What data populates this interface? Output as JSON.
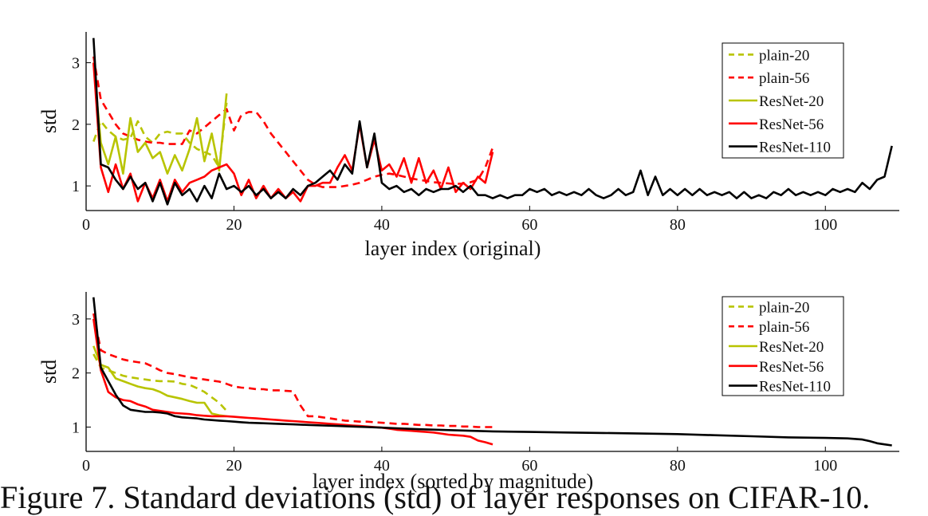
{
  "caption": "Figure 7. Standard deviations (std) of layer responses on CIFAR-10.",
  "colors": {
    "plain_20": "#b8c400",
    "plain_56": "#ff0000",
    "resnet_20": "#b8c400",
    "resnet_56": "#ff0000",
    "resnet_110": "#000000"
  },
  "chart_data": [
    {
      "type": "line",
      "xlabel": "layer index (original)",
      "ylabel": "std",
      "xlim": [
        0,
        110
      ],
      "ylim": [
        0.6,
        3.5
      ],
      "xticks": [
        0,
        20,
        40,
        60,
        80,
        100
      ],
      "yticks": [
        1,
        2,
        3
      ],
      "legend_position": "top-right",
      "series": [
        {
          "name": "plain-20",
          "style": "dashed",
          "color": "#b8c400",
          "x": [
            1,
            2,
            3,
            4,
            5,
            6,
            7,
            8,
            9,
            10,
            11,
            12,
            13,
            14,
            15,
            16,
            17,
            18,
            19
          ],
          "y": [
            1.72,
            2.05,
            1.9,
            1.8,
            1.75,
            1.78,
            2.05,
            1.8,
            1.7,
            1.85,
            1.88,
            1.85,
            1.85,
            1.7,
            1.6,
            1.55,
            1.5,
            1.3,
            2.35
          ]
        },
        {
          "name": "plain-56",
          "style": "dashed",
          "color": "#ff0000",
          "x": [
            1,
            2,
            3,
            4,
            5,
            6,
            7,
            8,
            9,
            10,
            11,
            12,
            13,
            14,
            15,
            16,
            17,
            18,
            19,
            20,
            21,
            22,
            23,
            24,
            25,
            26,
            27,
            28,
            29,
            30,
            31,
            32,
            33,
            34,
            35,
            36,
            37,
            38,
            39,
            40,
            41,
            42,
            43,
            44,
            45,
            46,
            47,
            48,
            49,
            50,
            51,
            52,
            53,
            54,
            55
          ],
          "y": [
            3.1,
            2.4,
            2.2,
            2.0,
            1.85,
            1.8,
            1.75,
            1.72,
            1.7,
            1.7,
            1.68,
            1.68,
            1.68,
            1.9,
            1.85,
            1.95,
            2.05,
            2.15,
            2.25,
            1.9,
            2.15,
            2.2,
            2.2,
            2.05,
            1.85,
            1.7,
            1.55,
            1.4,
            1.25,
            1.1,
            1.02,
            0.98,
            0.98,
            0.98,
            1.0,
            1.02,
            1.05,
            1.1,
            1.15,
            1.18,
            1.2,
            1.18,
            1.15,
            1.12,
            1.1,
            1.08,
            1.06,
            1.05,
            1.04,
            1.03,
            1.04,
            1.06,
            1.1,
            1.3,
            1.62
          ]
        },
        {
          "name": "ResNet-20",
          "style": "solid",
          "color": "#b8c400",
          "x": [
            1,
            2,
            3,
            4,
            5,
            6,
            7,
            8,
            9,
            10,
            11,
            12,
            13,
            14,
            15,
            16,
            17,
            18,
            19
          ],
          "y": [
            3.0,
            1.7,
            1.35,
            1.8,
            1.2,
            2.1,
            1.55,
            1.7,
            1.45,
            1.55,
            1.2,
            1.5,
            1.25,
            1.6,
            2.1,
            1.4,
            1.85,
            1.25,
            2.5
          ]
        },
        {
          "name": "ResNet-56",
          "style": "solid",
          "color": "#ff0000",
          "x": [
            1,
            2,
            3,
            4,
            5,
            6,
            7,
            8,
            9,
            10,
            11,
            12,
            13,
            14,
            15,
            16,
            17,
            18,
            19,
            20,
            21,
            22,
            23,
            24,
            25,
            26,
            27,
            28,
            29,
            30,
            31,
            32,
            33,
            34,
            35,
            36,
            37,
            38,
            39,
            40,
            41,
            42,
            43,
            44,
            45,
            46,
            47,
            48,
            49,
            50,
            51,
            52,
            53,
            54,
            55
          ],
          "y": [
            3.0,
            1.3,
            0.9,
            1.35,
            0.95,
            1.2,
            0.75,
            1.05,
            0.8,
            1.1,
            0.75,
            1.1,
            0.9,
            1.05,
            1.1,
            1.15,
            1.25,
            1.3,
            1.35,
            1.2,
            0.85,
            1.1,
            0.8,
            1.0,
            0.8,
            0.95,
            0.8,
            0.9,
            0.75,
            1.0,
            1.0,
            1.05,
            1.05,
            1.3,
            1.5,
            1.25,
            2.0,
            1.3,
            1.75,
            1.25,
            1.35,
            1.15,
            1.45,
            1.05,
            1.45,
            1.05,
            1.25,
            0.95,
            1.3,
            0.9,
            1.05,
            0.95,
            1.15,
            1.05,
            1.55
          ]
        },
        {
          "name": "ResNet-110",
          "style": "solid",
          "color": "#000000",
          "x": [
            1,
            2,
            3,
            4,
            5,
            6,
            7,
            8,
            9,
            10,
            11,
            12,
            13,
            14,
            15,
            16,
            17,
            18,
            19,
            20,
            21,
            22,
            23,
            24,
            25,
            26,
            27,
            28,
            29,
            30,
            31,
            32,
            33,
            34,
            35,
            36,
            37,
            38,
            39,
            40,
            41,
            42,
            43,
            44,
            45,
            46,
            47,
            48,
            49,
            50,
            51,
            52,
            53,
            54,
            55,
            56,
            57,
            58,
            59,
            60,
            61,
            62,
            63,
            64,
            65,
            66,
            67,
            68,
            69,
            70,
            71,
            72,
            73,
            74,
            75,
            76,
            77,
            78,
            79,
            80,
            81,
            82,
            83,
            84,
            85,
            86,
            87,
            88,
            89,
            90,
            91,
            92,
            93,
            94,
            95,
            96,
            97,
            98,
            99,
            100,
            101,
            102,
            103,
            104,
            105,
            106,
            107,
            108,
            109
          ],
          "y": [
            3.4,
            1.35,
            1.3,
            1.1,
            0.95,
            1.15,
            0.95,
            1.05,
            0.75,
            1.05,
            0.7,
            1.05,
            0.85,
            0.95,
            0.75,
            1.0,
            0.8,
            1.2,
            0.95,
            1.0,
            0.9,
            1.0,
            0.85,
            0.95,
            0.8,
            0.9,
            0.8,
            0.95,
            0.85,
            1.0,
            1.05,
            1.15,
            1.25,
            1.1,
            1.35,
            1.2,
            2.05,
            1.3,
            1.85,
            1.05,
            0.95,
            1.0,
            0.9,
            0.95,
            0.85,
            0.95,
            0.9,
            0.95,
            0.95,
            1.0,
            0.9,
            1.0,
            0.85,
            0.85,
            0.8,
            0.85,
            0.8,
            0.85,
            0.85,
            0.95,
            0.9,
            0.95,
            0.85,
            0.9,
            0.85,
            0.9,
            0.85,
            0.95,
            0.85,
            0.8,
            0.85,
            0.95,
            0.85,
            0.9,
            1.25,
            0.85,
            1.15,
            0.85,
            0.95,
            0.85,
            0.95,
            0.85,
            0.95,
            0.85,
            0.9,
            0.85,
            0.9,
            0.8,
            0.9,
            0.8,
            0.85,
            0.8,
            0.9,
            0.85,
            0.95,
            0.85,
            0.9,
            0.85,
            0.9,
            0.85,
            0.95,
            0.9,
            0.95,
            0.9,
            1.05,
            0.95,
            1.1,
            1.15,
            1.65
          ]
        }
      ]
    },
    {
      "type": "line",
      "xlabel": "layer index (sorted by magnitude)",
      "ylabel": "std",
      "xlim": [
        0,
        110
      ],
      "ylim": [
        0.55,
        3.5
      ],
      "xticks": [
        0,
        20,
        40,
        60,
        80,
        100
      ],
      "yticks": [
        1,
        2,
        3
      ],
      "legend_position": "top-right",
      "series": [
        {
          "name": "plain-20",
          "style": "dashed",
          "color": "#b8c400",
          "x": [
            1,
            2,
            3,
            4,
            5,
            6,
            7,
            8,
            9,
            10,
            11,
            12,
            13,
            14,
            15,
            16,
            17,
            18,
            19
          ],
          "y": [
            2.35,
            2.1,
            2.05,
            2.0,
            1.95,
            1.92,
            1.9,
            1.88,
            1.86,
            1.85,
            1.85,
            1.84,
            1.8,
            1.78,
            1.72,
            1.65,
            1.55,
            1.45,
            1.3
          ]
        },
        {
          "name": "plain-56",
          "style": "dashed",
          "color": "#ff0000",
          "x": [
            1,
            2,
            3,
            4,
            5,
            6,
            7,
            8,
            9,
            10,
            11,
            12,
            13,
            14,
            15,
            16,
            17,
            18,
            19,
            20,
            21,
            22,
            23,
            24,
            25,
            26,
            27,
            28,
            29,
            30,
            31,
            32,
            33,
            34,
            35,
            36,
            37,
            38,
            39,
            40,
            41,
            42,
            43,
            44,
            45,
            46,
            47,
            48,
            49,
            50,
            51,
            52,
            53,
            54,
            55
          ],
          "y": [
            3.1,
            2.42,
            2.35,
            2.3,
            2.25,
            2.22,
            2.2,
            2.18,
            2.12,
            2.05,
            2.0,
            1.98,
            1.95,
            1.92,
            1.9,
            1.88,
            1.86,
            1.84,
            1.8,
            1.75,
            1.73,
            1.72,
            1.7,
            1.7,
            1.68,
            1.68,
            1.67,
            1.66,
            1.4,
            1.2,
            1.2,
            1.18,
            1.16,
            1.14,
            1.12,
            1.11,
            1.1,
            1.1,
            1.09,
            1.08,
            1.07,
            1.06,
            1.06,
            1.05,
            1.04,
            1.04,
            1.03,
            1.03,
            1.02,
            1.02,
            1.01,
            1.01,
            1.0,
            1.0,
            1.0
          ]
        },
        {
          "name": "ResNet-20",
          "style": "solid",
          "color": "#b8c400",
          "x": [
            1,
            2,
            3,
            4,
            5,
            6,
            7,
            8,
            9,
            10,
            11,
            12,
            13,
            14,
            15,
            16,
            17,
            18,
            19
          ],
          "y": [
            2.5,
            2.15,
            2.1,
            1.9,
            1.85,
            1.8,
            1.75,
            1.72,
            1.7,
            1.65,
            1.58,
            1.55,
            1.52,
            1.48,
            1.45,
            1.45,
            1.25,
            1.22,
            1.2
          ]
        },
        {
          "name": "ResNet-56",
          "style": "solid",
          "color": "#ff0000",
          "x": [
            1,
            2,
            3,
            4,
            5,
            6,
            7,
            8,
            9,
            10,
            11,
            12,
            13,
            14,
            15,
            16,
            17,
            18,
            19,
            20,
            21,
            22,
            23,
            24,
            25,
            26,
            27,
            28,
            29,
            30,
            31,
            32,
            33,
            34,
            35,
            36,
            37,
            38,
            39,
            40,
            41,
            42,
            43,
            44,
            45,
            46,
            47,
            48,
            49,
            50,
            51,
            52,
            53,
            54,
            55
          ],
          "y": [
            3.0,
            2.05,
            1.65,
            1.55,
            1.5,
            1.48,
            1.42,
            1.38,
            1.32,
            1.3,
            1.28,
            1.26,
            1.25,
            1.24,
            1.22,
            1.21,
            1.2,
            1.2,
            1.2,
            1.19,
            1.18,
            1.17,
            1.16,
            1.15,
            1.14,
            1.13,
            1.12,
            1.11,
            1.1,
            1.09,
            1.08,
            1.07,
            1.06,
            1.05,
            1.04,
            1.03,
            1.02,
            1.01,
            1.0,
            0.99,
            0.97,
            0.95,
            0.94,
            0.93,
            0.92,
            0.91,
            0.9,
            0.88,
            0.86,
            0.85,
            0.84,
            0.82,
            0.75,
            0.72,
            0.68
          ]
        },
        {
          "name": "ResNet-110",
          "style": "solid",
          "color": "#000000",
          "x": [
            1,
            2,
            3,
            4,
            5,
            6,
            7,
            8,
            9,
            10,
            11,
            12,
            13,
            14,
            15,
            16,
            17,
            18,
            19,
            20,
            21,
            22,
            24,
            26,
            28,
            30,
            32,
            34,
            36,
            38,
            40,
            45,
            50,
            55,
            60,
            65,
            70,
            75,
            80,
            85,
            90,
            95,
            100,
            103,
            105,
            106,
            107,
            108,
            109
          ],
          "y": [
            3.4,
            2.1,
            1.85,
            1.6,
            1.4,
            1.32,
            1.3,
            1.28,
            1.28,
            1.27,
            1.25,
            1.2,
            1.18,
            1.17,
            1.16,
            1.14,
            1.13,
            1.12,
            1.11,
            1.1,
            1.09,
            1.08,
            1.07,
            1.06,
            1.05,
            1.04,
            1.03,
            1.02,
            1.01,
            1.0,
            0.99,
            0.96,
            0.94,
            0.92,
            0.91,
            0.9,
            0.89,
            0.88,
            0.87,
            0.85,
            0.83,
            0.81,
            0.8,
            0.79,
            0.77,
            0.74,
            0.7,
            0.68,
            0.66
          ]
        }
      ]
    }
  ]
}
